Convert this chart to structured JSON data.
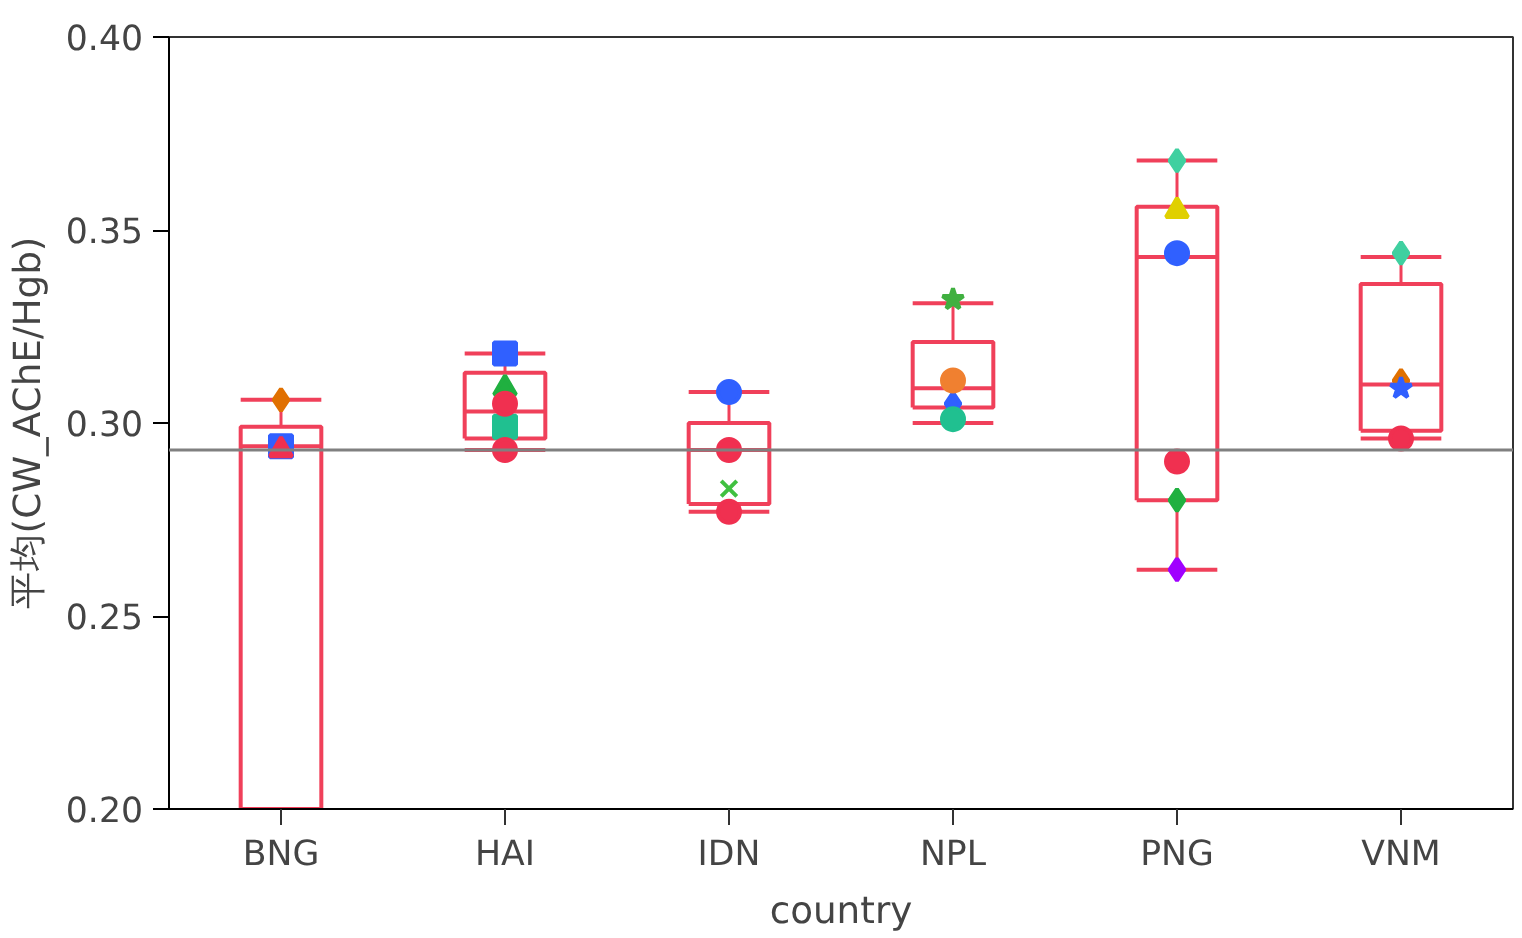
{
  "chart_data": {
    "type": "box",
    "xlabel": "country",
    "ylabel": "平均(CW_AChE/Hgb)",
    "categories": [
      "BNG",
      "HAI",
      "IDN",
      "NPL",
      "PNG",
      "VNM"
    ],
    "ylim": [
      0.2,
      0.4
    ],
    "yticks": [
      {
        "value": 0.2,
        "label": "0.20"
      },
      0.25,
      {
        "value": 0.3,
        "label": "0.30"
      },
      0.35,
      {
        "value": 0.4,
        "label": "0.40"
      }
    ],
    "grid": false,
    "series": [
      {
        "color": "#f0405a",
        "boxes": [
          {
            "low": 0.2,
            "q1": 0.2,
            "median": 0.294,
            "q3": 0.299,
            "high": 0.306
          },
          {
            "low": 0.293,
            "q1": 0.296,
            "median": 0.303,
            "q3": 0.313,
            "high": 0.318
          },
          {
            "low": 0.277,
            "q1": 0.279,
            "median": 0.293,
            "q3": 0.3,
            "high": 0.308
          },
          {
            "low": 0.3,
            "q1": 0.304,
            "median": 0.309,
            "q3": 0.321,
            "high": 0.331
          },
          {
            "low": 0.262,
            "q1": 0.28,
            "median": 0.343,
            "q3": 0.356,
            "high": 0.368
          },
          {
            "low": 0.296,
            "q1": 0.298,
            "median": 0.31,
            "q3": 0.336,
            "high": 0.343
          }
        ]
      },
      {
        "type": "scatter",
        "marker": "diamond",
        "x": [
          "BNG",
          "VNM",
          "NPL",
          "PNG",
          "PNG",
          "PNG",
          "VNM"
        ],
        "values": [
          0.306,
          0.311,
          0.305,
          0.28,
          0.262,
          0.368,
          0.344
        ],
        "colors": [
          "#e07000",
          "#e07000",
          "#3060ff",
          "#20b040",
          "#a000ff",
          "#40d0a0",
          "#40d0a0"
        ]
      },
      {
        "type": "scatter",
        "marker": "square",
        "x": [
          "BNG",
          "HAI",
          "HAI"
        ],
        "values": [
          0.294,
          0.318,
          0.299
        ],
        "colors": [
          "#3060ff",
          "#3060ff",
          "#20c090"
        ]
      },
      {
        "type": "scatter",
        "marker": "triangle",
        "x": [
          "BNG",
          "HAI",
          "PNG"
        ],
        "values": [
          0.293,
          0.309,
          0.355
        ],
        "colors": [
          "#f03050",
          "#20b040",
          "#e0d000"
        ]
      },
      {
        "type": "scatter",
        "marker": "circle",
        "x": [
          "HAI",
          "IDN",
          "NPL",
          "PNG",
          "HAI",
          "IDN",
          "IDN",
          "NPL",
          "VNM",
          "PNG"
        ],
        "values": [
          0.305,
          0.293,
          0.311,
          0.344,
          0.293,
          0.308,
          0.277,
          0.301,
          0.296,
          0.29
        ],
        "colors": [
          "#f03050",
          "#f03050",
          "#f08030",
          "#3060ff",
          "#f03050",
          "#3060ff",
          "#f03050",
          "#20c090",
          "#f03050",
          "#f03050"
        ]
      },
      {
        "type": "scatter",
        "marker": "cross",
        "x": [
          "IDN"
        ],
        "values": [
          0.283
        ],
        "colors": [
          "#40c040"
        ]
      },
      {
        "type": "scatter",
        "marker": "star",
        "x": [
          "NPL",
          "VNM"
        ],
        "values": [
          0.332,
          0.309
        ],
        "colors": [
          "#40b040",
          "#3060ff"
        ]
      }
    ],
    "ref_lines": [
      {
        "axis": "y",
        "value": 0.293,
        "color": "#808080"
      }
    ]
  }
}
